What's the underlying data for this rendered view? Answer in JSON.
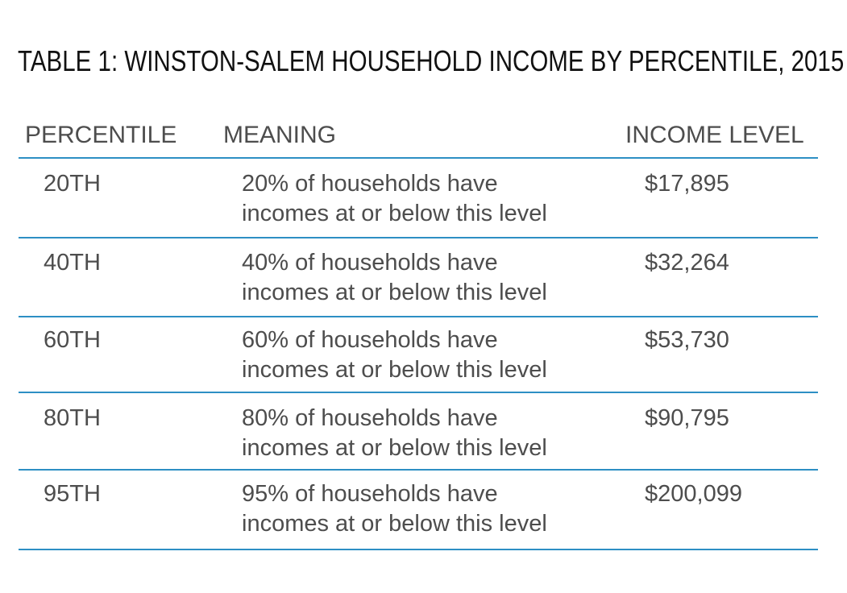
{
  "title": "TABLE 1: WINSTON-SALEM HOUSEHOLD INCOME BY PERCENTILE, 2015",
  "colors": {
    "rule": "#2d8fc4",
    "text": "#4d4d4d",
    "title": "#111111"
  },
  "table": {
    "headers": {
      "percentile": "PERCENTILE",
      "meaning": "MEANING",
      "income": "INCOME LEVEL"
    },
    "rows": [
      {
        "percentile": "20TH",
        "meaning_line1": "20% of households have",
        "meaning_line2": "incomes at or below this level",
        "income": "$17,895"
      },
      {
        "percentile": "40TH",
        "meaning_line1": "40% of households have",
        "meaning_line2": "incomes at or below this level",
        "income": "$32,264"
      },
      {
        "percentile": "60TH",
        "meaning_line1": "60% of households have",
        "meaning_line2": "incomes at or below this level",
        "income": "$53,730"
      },
      {
        "percentile": "80TH",
        "meaning_line1": "80% of households have",
        "meaning_line2": "incomes at or below this level",
        "income": "$90,795"
      },
      {
        "percentile": "95TH",
        "meaning_line1": "95% of households have",
        "meaning_line2": "incomes at or below this level",
        "income": "$200,099"
      }
    ]
  }
}
